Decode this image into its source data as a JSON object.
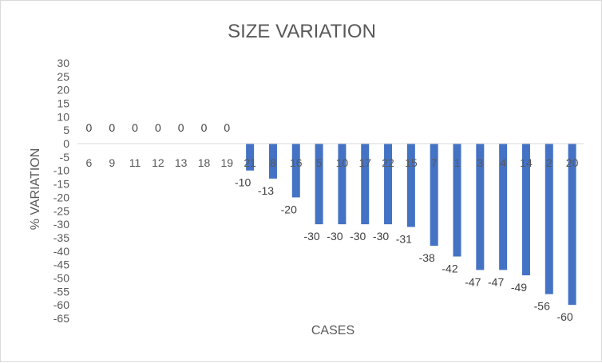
{
  "chart_data": {
    "type": "bar",
    "title": "SIZE VARIATION",
    "xlabel": "CASES",
    "ylabel": "% VARIATION",
    "categories": [
      "6",
      "9",
      "11",
      "12",
      "13",
      "18",
      "19",
      "21",
      "8",
      "16",
      "5",
      "10",
      "17",
      "22",
      "15",
      "7",
      "1",
      "3",
      "4",
      "14",
      "2",
      "20"
    ],
    "series": [
      {
        "values": [
          0,
          0,
          0,
          0,
          0,
          0,
          0,
          -10,
          -13,
          -20,
          -30,
          -30,
          -30,
          -30,
          -31,
          -38,
          -42,
          -47,
          -47,
          -49,
          -56,
          -60
        ]
      }
    ],
    "ylim": [
      -65,
      30
    ],
    "ytick_step": 5,
    "data_labels": true,
    "grid": false,
    "legend": "none",
    "bar_color": "#4472c4",
    "axis_color": "#d9d9d9"
  }
}
